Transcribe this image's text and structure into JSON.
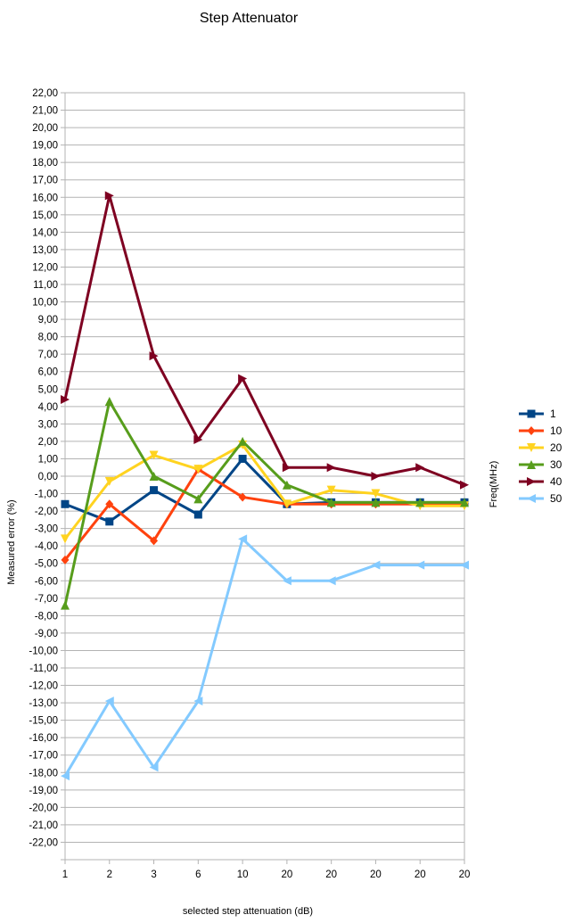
{
  "chart_data": {
    "type": "line",
    "title": "Step Attenuator",
    "xlabel": "selected step attenuation (dB)",
    "ylabel": "Measured error (%)",
    "legend_title": "Freq(MHz)",
    "legend_position": "right",
    "grid": true,
    "categories": [
      "1",
      "2",
      "3",
      "6",
      "10",
      "20",
      "20",
      "20",
      "20",
      "20"
    ],
    "ylim": [
      -22,
      22
    ],
    "ytick_step": 1,
    "ytick_labels": [
      "22,00",
      "21,00",
      "20,00",
      "19,00",
      "18,00",
      "17,00",
      "16,00",
      "15,00",
      "14,00",
      "13,00",
      "12,00",
      "11,00",
      "10,00",
      "9,00",
      "8,00",
      "7,00",
      "6,00",
      "5,00",
      "4,00",
      "3,00",
      "2,00",
      "1,00",
      "0,00",
      "-1,00",
      "-2,00",
      "-3,00",
      "-4,00",
      "-5,00",
      "-6,00",
      "-7,00",
      "-8,00",
      "-9,00",
      "-10,00",
      "-11,00",
      "-12,00",
      "-13,00",
      "-15,00",
      "-16,00",
      "-17,00",
      "-18,00",
      "-19,00",
      "-20,00",
      "-21,00",
      "-22,00"
    ],
    "series": [
      {
        "name": "1",
        "color": "#004586",
        "marker": "square",
        "values": [
          -1.6,
          -2.6,
          -0.8,
          -2.2,
          1.0,
          -1.6,
          -1.5,
          -1.5,
          -1.5,
          -1.5
        ]
      },
      {
        "name": "10",
        "color": "#ff420e",
        "marker": "diamond",
        "values": [
          -4.8,
          -1.6,
          -3.7,
          0.4,
          -1.2,
          -1.6,
          -1.6,
          -1.6,
          -1.6,
          -1.6
        ]
      },
      {
        "name": "20",
        "color": "#ffd320",
        "marker": "triangle-down",
        "values": [
          -3.6,
          -0.3,
          1.2,
          0.4,
          1.8,
          -1.6,
          -0.8,
          -1.0,
          -1.7,
          -1.7
        ]
      },
      {
        "name": "30",
        "color": "#579d1c",
        "marker": "triangle-up",
        "values": [
          -7.4,
          4.3,
          0.0,
          -1.3,
          2.0,
          -0.5,
          -1.5,
          -1.5,
          -1.5,
          -1.5
        ]
      },
      {
        "name": "40",
        "color": "#7e0021",
        "marker": "triangle-right",
        "values": [
          4.4,
          16.1,
          6.9,
          2.1,
          5.6,
          0.5,
          0.5,
          0.0,
          0.5,
          -0.5
        ]
      },
      {
        "name": "50",
        "color": "#83caff",
        "marker": "triangle-left",
        "values": [
          -17.2,
          -12.9,
          -16.7,
          -12.9,
          -3.6,
          -6.0,
          -6.0,
          -5.1,
          -5.1,
          -5.1
        ]
      }
    ]
  }
}
